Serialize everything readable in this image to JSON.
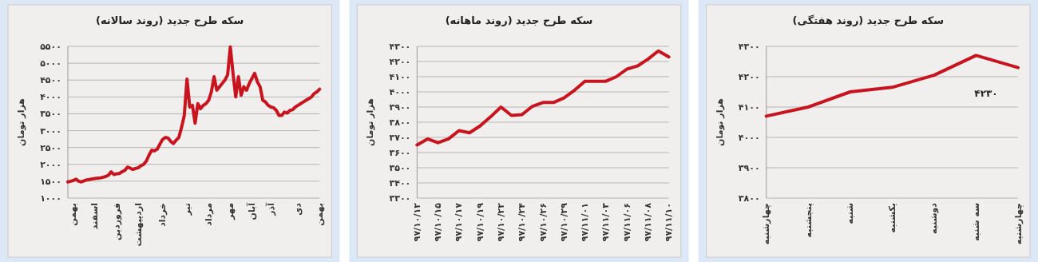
{
  "chart_data": [
    {
      "type": "line",
      "title": "سکه طرح جدید (روند سالانه)",
      "ylabel": "هزار تومان",
      "grid": "y",
      "categories": [
        null,
        null,
        "بهمن",
        null,
        null,
        null,
        null,
        null,
        null,
        null,
        "اسفند",
        null,
        null,
        null,
        null,
        null,
        null,
        null,
        "فروردین",
        null,
        null,
        null,
        null,
        null,
        null,
        null,
        "اردیبهشت",
        null,
        null,
        null,
        null,
        null,
        null,
        null,
        null,
        "خرداد",
        null,
        null,
        null,
        null,
        null,
        null,
        null,
        null,
        "تیر",
        null,
        null,
        null,
        null,
        null,
        null,
        null,
        "مرداد",
        null,
        null,
        null,
        null,
        null,
        null,
        null,
        "مهر",
        null,
        null,
        null,
        null,
        null,
        null,
        null,
        "آبان",
        null,
        null,
        null,
        null,
        null,
        null,
        "آذر",
        null,
        null,
        null,
        null,
        null,
        null,
        null,
        null,
        null,
        "دی",
        null,
        null,
        null,
        null,
        null,
        null,
        null,
        "بهمن"
      ],
      "series": [
        {
          "color": "#c8141e",
          "values": [
            1480,
            1500,
            1520,
            1560,
            1500,
            1480,
            1510,
            1540,
            1550,
            1570,
            1580,
            1590,
            1600,
            1620,
            1640,
            1680,
            1780,
            1700,
            1720,
            1730,
            1780,
            1820,
            1920,
            1890,
            1850,
            1880,
            1900,
            1960,
            2000,
            2100,
            2280,
            2420,
            2400,
            2450,
            2600,
            2740,
            2800,
            2780,
            2680,
            2620,
            2720,
            2800,
            3100,
            3450,
            4530,
            3700,
            3750,
            3220,
            3800,
            3650,
            3750,
            3800,
            3900,
            4150,
            4600,
            4200,
            4300,
            4400,
            4500,
            4650,
            5480,
            4700,
            4000,
            4600,
            4050,
            4300,
            4200,
            4400,
            4550,
            4700,
            4450,
            4300,
            3900,
            3850,
            3750,
            3700,
            3680,
            3600,
            3450,
            3450,
            3550,
            3520,
            3600,
            3620,
            3700,
            3750,
            3800,
            3850,
            3900,
            3950,
            4000,
            4100,
            4150,
            4230
          ]
        }
      ],
      "ylim": [
        1000,
        5500
      ],
      "yticks": [
        {
          "value": 1000,
          "label": "۱۰۰۰"
        },
        {
          "value": 1500,
          "label": "۱۵۰۰"
        },
        {
          "value": 2000,
          "label": "۲۰۰۰"
        },
        {
          "value": 2500,
          "label": "۲۵۰۰"
        },
        {
          "value": 3000,
          "label": "۳۰۰۰"
        },
        {
          "value": 3500,
          "label": "۳۵۰۰"
        },
        {
          "value": 4000,
          "label": "۴۰۰۰"
        },
        {
          "value": 4500,
          "label": "۴۵۰۰"
        },
        {
          "value": 5000,
          "label": "۵۰۰۰"
        },
        {
          "value": 5500,
          "label": "۵۵۰۰"
        }
      ]
    },
    {
      "type": "line",
      "title": "سکه طرح جدید (روند ماهانه)",
      "ylabel": "هزار تومان",
      "grid": "y",
      "categories": [
        "۹۷/۱۰/۱۲",
        null,
        "۹۷/۱۰/۱۵",
        null,
        "۹۷/۱۰/۱۷",
        null,
        "۹۷/۱۰/۱۹",
        null,
        "۹۷/۱۰/۲۲",
        null,
        "۹۷/۱۰/۲۴",
        null,
        "۹۷/۱۰/۲۶",
        null,
        "۹۷/۱۰/۲۹",
        null,
        "۹۷/۱۱/۰۱",
        null,
        "۹۷/۱۱/۰۳",
        null,
        "۹۷/۱۱/۰۶",
        null,
        "۹۷/۱۱/۰۸",
        null,
        "۹۷/۱۱/۱۰"
      ],
      "series": [
        {
          "color": "#c8141e",
          "values": [
            3650,
            3690,
            3665,
            3690,
            3745,
            3730,
            3775,
            3835,
            3900,
            3845,
            3850,
            3905,
            3930,
            3930,
            3960,
            4010,
            4070,
            4070,
            4070,
            4100,
            4150,
            4170,
            4215,
            4270,
            4230
          ]
        }
      ],
      "ylim": [
        3300,
        4300
      ],
      "yticks": [
        {
          "value": 3300,
          "label": "۳۳۰۰"
        },
        {
          "value": 3400,
          "label": "۳۴۰۰"
        },
        {
          "value": 3500,
          "label": "۳۵۰۰"
        },
        {
          "value": 3600,
          "label": "۳۶۰۰"
        },
        {
          "value": 3700,
          "label": "۳۷۰۰"
        },
        {
          "value": 3800,
          "label": "۳۸۰۰"
        },
        {
          "value": 3900,
          "label": "۳۹۰۰"
        },
        {
          "value": 4000,
          "label": "۴۰۰۰"
        },
        {
          "value": 4100,
          "label": "۴۱۰۰"
        },
        {
          "value": 4200,
          "label": "۴۲۰۰"
        },
        {
          "value": 4300,
          "label": "۴۳۰۰"
        }
      ]
    },
    {
      "type": "line",
      "title": "سکه طرح جدید (روند هفتگی)",
      "ylabel": "هزار تومان",
      "grid": "y",
      "categories": [
        "چهارشنبه",
        "پنجشنبه",
        "شنبه",
        "یکشنبه",
        "دوشنبه",
        "سه شنبه",
        "چهارشنبه"
      ],
      "series": [
        {
          "color": "#c8141e",
          "values": [
            4070,
            4100,
            4150,
            4165,
            4205,
            4270,
            4230
          ]
        }
      ],
      "annotations": [
        "۴۲۳۰"
      ],
      "ylim": [
        3800,
        4300
      ],
      "yticks": [
        {
          "value": 3800,
          "label": "۳۸۰۰"
        },
        {
          "value": 3900,
          "label": "۳۹۰۰"
        },
        {
          "value": 4000,
          "label": "۴۰۰۰"
        },
        {
          "value": 4100,
          "label": "۴۱۰۰"
        },
        {
          "value": 4200,
          "label": "۴۲۰۰"
        },
        {
          "value": 4300,
          "label": "۴۳۰۰"
        }
      ]
    }
  ]
}
